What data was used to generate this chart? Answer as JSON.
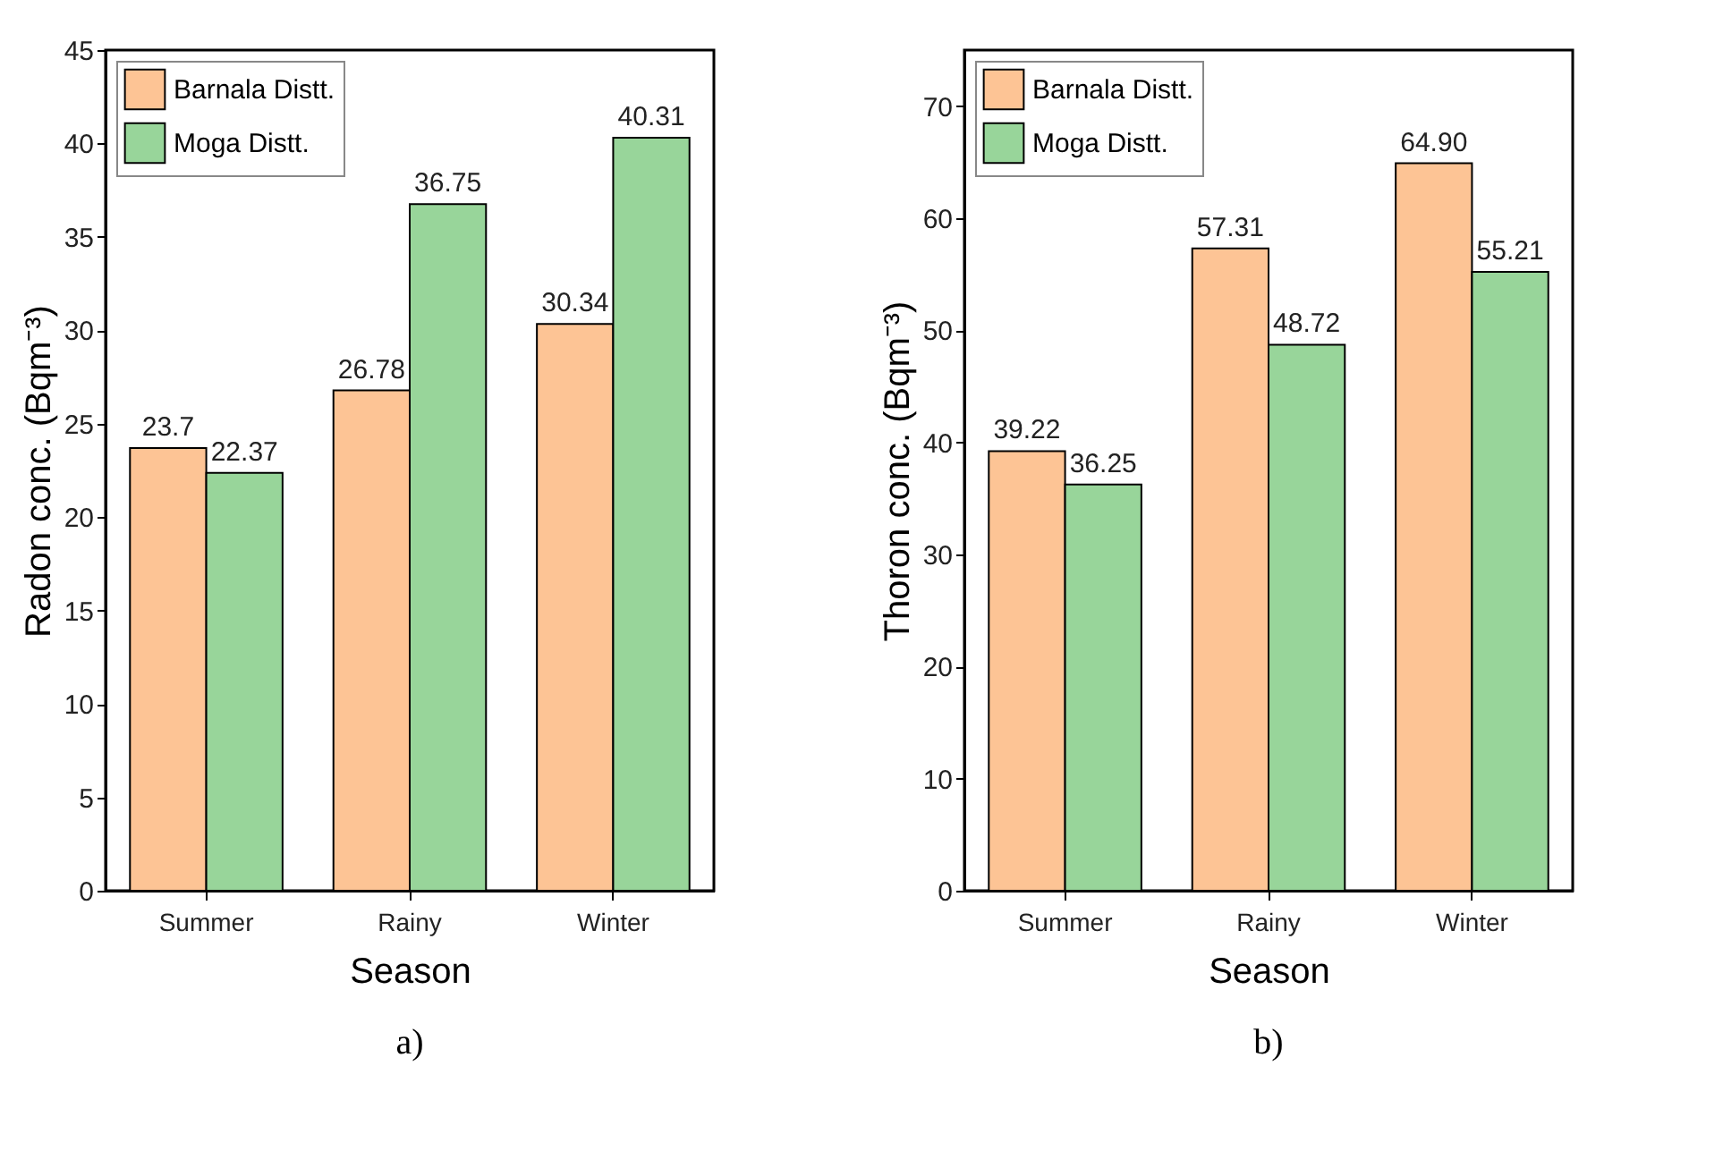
{
  "chart_data": [
    {
      "type": "bar",
      "categories": [
        "Summer",
        "Rainy",
        "Winter"
      ],
      "xlabel": "Season",
      "ylabel": "Radon conc. (Bqm⁻³)",
      "ylim": [
        0,
        45
      ],
      "yticks": [
        0,
        5,
        10,
        15,
        20,
        25,
        30,
        35,
        40,
        45
      ],
      "grid": false,
      "legend": "top left",
      "data_labels": true,
      "annotations": [
        "a)"
      ],
      "series": [
        {
          "name": "Barnala Distt.",
          "color": "#fdc495",
          "values": [
            23.7,
            26.78,
            30.34
          ]
        },
        {
          "name": "Moga Distt.",
          "color": "#98d59a",
          "values": [
            22.37,
            36.75,
            40.31
          ]
        }
      ]
    },
    {
      "type": "bar",
      "categories": [
        "Summer",
        "Rainy",
        "Winter"
      ],
      "xlabel": "Season",
      "ylabel": "Thoron conc. (Bqm⁻³)",
      "ylim": [
        0,
        75
      ],
      "yticks": [
        0,
        10,
        20,
        30,
        40,
        50,
        60,
        70
      ],
      "grid": false,
      "legend": "top left",
      "annotations": [
        "b)"
      ],
      "series": [
        {
          "name": "Barnala Distt.",
          "color": "#fdc495",
          "values": [
            39.22,
            57.31,
            64.9
          ],
          "value_labels": [
            "39.22",
            "57.31",
            "64.90"
          ]
        },
        {
          "name": "Moga Distt.",
          "color": "#98d59a",
          "values": [
            36.25,
            48.72,
            55.21
          ],
          "value_labels": [
            "36.25",
            "48.72",
            "55.21"
          ]
        }
      ]
    }
  ]
}
